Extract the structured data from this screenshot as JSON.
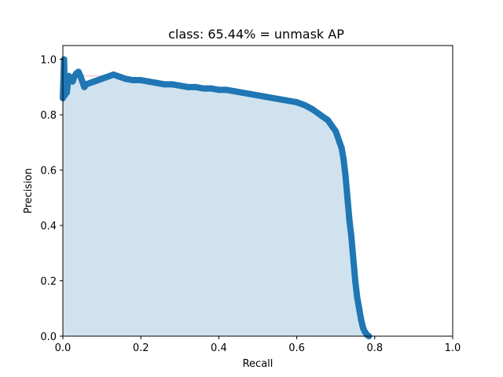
{
  "chart_data": {
    "type": "line",
    "title": "class: 65.44% = unmask AP",
    "xlabel": "Recall",
    "ylabel": "Precision",
    "xlim": [
      0,
      1
    ],
    "ylim": [
      0,
      1.05
    ],
    "xticks": [
      "0.0",
      "0.2",
      "0.4",
      "0.6",
      "0.8",
      "1.0"
    ],
    "yticks": [
      "0.0",
      "0.2",
      "0.4",
      "0.6",
      "0.8",
      "1.0"
    ],
    "grid": false,
    "fill_under_curve": true,
    "colors": {
      "line": "#1f77b4",
      "fill": "#d1e2ef",
      "interpolated": "#e8b4c8"
    },
    "series": [
      {
        "x": [
          0.0,
          0.003,
          0.005,
          0.006,
          0.008,
          0.01,
          0.015,
          0.02,
          0.025,
          0.03,
          0.035,
          0.04,
          0.045,
          0.05,
          0.055,
          0.06,
          0.07,
          0.08,
          0.09,
          0.1,
          0.11,
          0.12,
          0.13,
          0.14,
          0.15,
          0.16,
          0.18,
          0.2,
          0.22,
          0.24,
          0.26,
          0.28,
          0.3,
          0.32,
          0.34,
          0.36,
          0.38,
          0.4,
          0.42,
          0.44,
          0.46,
          0.48,
          0.5,
          0.52,
          0.54,
          0.56,
          0.58,
          0.6,
          0.62,
          0.64,
          0.66,
          0.68,
          0.69,
          0.7,
          0.71,
          0.715,
          0.72,
          0.725,
          0.73,
          0.735,
          0.74,
          0.745,
          0.75,
          0.755,
          0.76,
          0.765,
          0.77,
          0.775,
          0.78,
          0.785
        ],
        "y": [
          0.86,
          1.0,
          0.87,
          0.92,
          0.9,
          0.88,
          0.94,
          0.93,
          0.92,
          0.94,
          0.95,
          0.955,
          0.94,
          0.92,
          0.9,
          0.91,
          0.915,
          0.92,
          0.925,
          0.93,
          0.935,
          0.94,
          0.945,
          0.94,
          0.935,
          0.93,
          0.925,
          0.925,
          0.92,
          0.915,
          0.91,
          0.91,
          0.905,
          0.9,
          0.9,
          0.895,
          0.895,
          0.89,
          0.89,
          0.885,
          0.88,
          0.875,
          0.87,
          0.865,
          0.86,
          0.855,
          0.85,
          0.845,
          0.835,
          0.82,
          0.8,
          0.78,
          0.76,
          0.74,
          0.7,
          0.68,
          0.64,
          0.58,
          0.5,
          0.42,
          0.36,
          0.28,
          0.2,
          0.14,
          0.1,
          0.06,
          0.03,
          0.015,
          0.005,
          0.0
        ]
      }
    ]
  }
}
